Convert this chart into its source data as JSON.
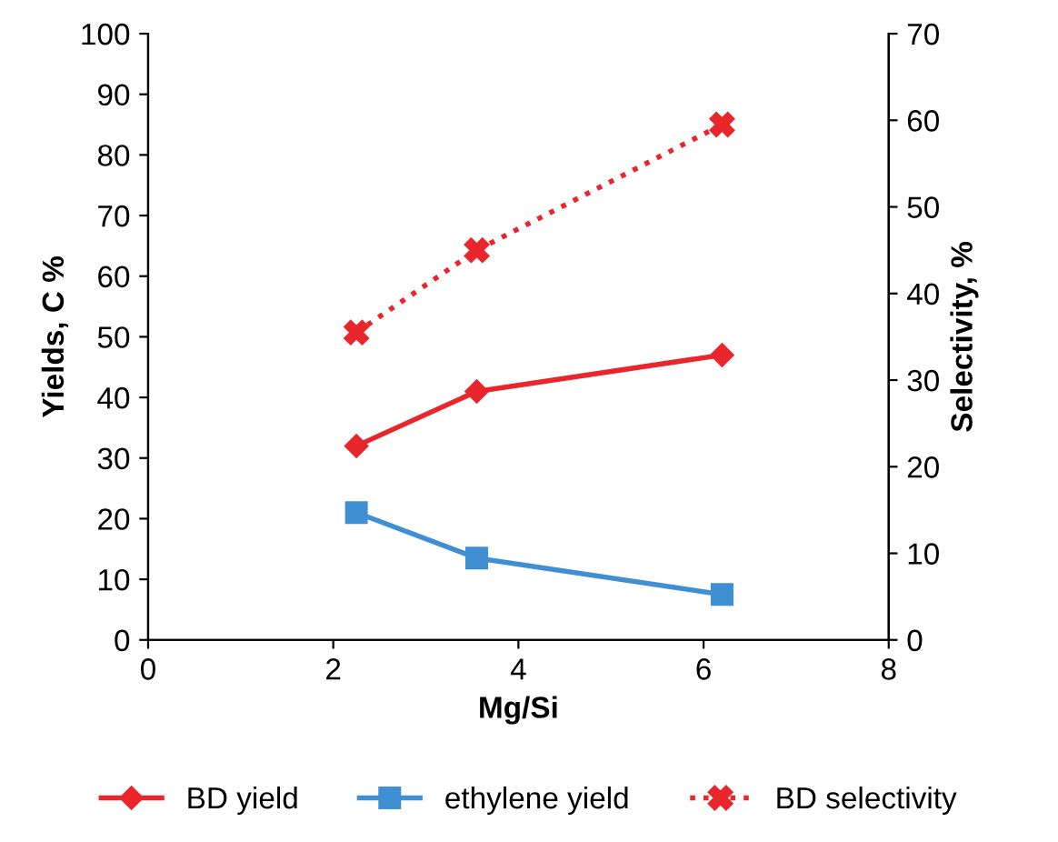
{
  "chart_data": {
    "type": "line",
    "xlabel": "Mg/Si",
    "ylabel": "Yields, C %",
    "y2label": "Selectivity, %",
    "xlim": [
      0,
      8
    ],
    "xticks": [
      0,
      2,
      4,
      6,
      8
    ],
    "ylim": [
      0,
      100
    ],
    "yticks": [
      0,
      10,
      20,
      30,
      40,
      50,
      60,
      70,
      80,
      90,
      100
    ],
    "y2lim": [
      0,
      70
    ],
    "y2ticks": [
      0,
      10,
      20,
      30,
      40,
      50,
      60,
      70
    ],
    "grid": false,
    "legend": "bottom",
    "x": [
      2.25,
      3.55,
      6.2
    ],
    "series": [
      {
        "name": "BD yield",
        "color": "#e8262b",
        "values": [
          32,
          41,
          47
        ],
        "marker": "diamond",
        "line_style": "solid"
      },
      {
        "name": "ethylene yield",
        "color": "#3f8fd2",
        "values": [
          21,
          13.5,
          7.5
        ],
        "marker": "square",
        "line_style": "solid"
      },
      {
        "name": "BD selectivity",
        "color": "#e8262b",
        "values": [
          35.5,
          45,
          59.5
        ],
        "marker": "cross",
        "line_style": "dotted",
        "axis": "y2"
      }
    ]
  }
}
